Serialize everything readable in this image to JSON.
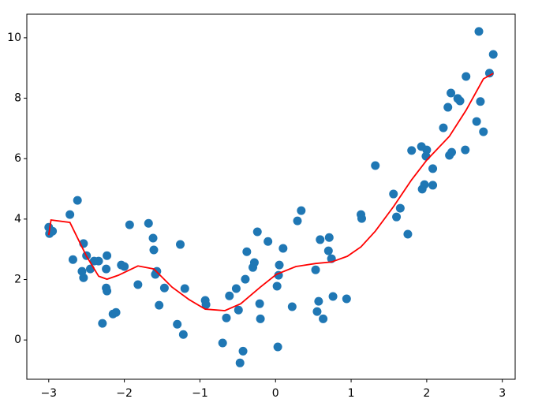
{
  "chart_data": {
    "type": "scatter",
    "xlim": [
      -3.29,
      3.17
    ],
    "ylim": [
      -1.3,
      10.78
    ],
    "xticks": [
      {
        "value": -3,
        "label": "−3"
      },
      {
        "value": -2,
        "label": "−2"
      },
      {
        "value": -1,
        "label": "−1"
      },
      0,
      1,
      2,
      3
    ],
    "yticks": [
      0,
      2,
      4,
      6,
      8,
      10
    ],
    "series": [
      {
        "type": "scatter",
        "color": "#1f77b4",
        "x": [
          -3.0,
          -2.99,
          -2.95,
          -2.72,
          -2.68,
          -2.62,
          -2.54,
          -2.56,
          -2.54,
          -2.5,
          -2.45,
          -2.4,
          -2.34,
          -2.29,
          -2.24,
          -2.23,
          -2.24,
          -2.23,
          -2.15,
          -2.11,
          -2.04,
          -2.0,
          -1.93,
          -1.82,
          -1.68,
          -1.62,
          -1.61,
          -1.59,
          -1.57,
          -1.54,
          -1.47,
          -1.3,
          -1.26,
          -1.22,
          -1.2,
          -0.93,
          -0.92,
          -0.7,
          -0.65,
          -0.61,
          -0.52,
          -0.49,
          -0.47,
          -0.43,
          -0.4,
          -0.38,
          -0.3,
          -0.28,
          -0.24,
          -0.21,
          -0.2,
          -0.1,
          0.02,
          0.03,
          0.04,
          0.05,
          0.1,
          0.22,
          0.29,
          0.34,
          0.53,
          0.55,
          0.57,
          0.59,
          0.63,
          0.7,
          0.71,
          0.74,
          0.76,
          0.94,
          1.13,
          1.14,
          1.32,
          1.56,
          1.6,
          1.65,
          1.75,
          1.8,
          1.93,
          1.94,
          1.97,
          1.99,
          2.0,
          2.08,
          2.08,
          2.22,
          2.28,
          2.3,
          2.32,
          2.33,
          2.41,
          2.44,
          2.51,
          2.52,
          2.66,
          2.69,
          2.71,
          2.75,
          2.83,
          2.88
        ],
        "y": [
          3.73,
          3.52,
          3.6,
          4.15,
          2.66,
          4.62,
          3.19,
          2.27,
          2.06,
          2.79,
          2.35,
          2.61,
          2.61,
          0.55,
          2.35,
          2.79,
          1.72,
          1.62,
          0.86,
          0.91,
          2.48,
          2.43,
          3.81,
          1.83,
          3.86,
          3.37,
          2.98,
          2.17,
          2.27,
          1.15,
          1.72,
          0.52,
          3.16,
          0.18,
          1.7,
          1.31,
          1.17,
          -0.1,
          0.73,
          1.46,
          1.7,
          0.99,
          -0.76,
          -0.37,
          2.01,
          2.92,
          2.4,
          2.56,
          3.58,
          1.2,
          0.7,
          3.26,
          1.78,
          -0.23,
          2.14,
          2.48,
          3.03,
          1.1,
          3.94,
          4.28,
          2.32,
          0.94,
          1.28,
          3.32,
          0.7,
          2.95,
          3.39,
          2.69,
          1.44,
          1.36,
          4.15,
          4.02,
          5.77,
          4.83,
          4.07,
          4.36,
          3.5,
          6.27,
          6.4,
          4.99,
          5.14,
          6.08,
          6.29,
          5.12,
          5.67,
          7.02,
          7.7,
          6.11,
          8.17,
          6.21,
          7.99,
          7.91,
          6.29,
          8.72,
          7.23,
          10.21,
          7.89,
          6.89,
          8.83,
          9.45
        ]
      },
      {
        "type": "line",
        "color": "#ff0000",
        "x": [
          -3.0,
          -2.97,
          -2.72,
          -2.5,
          -2.34,
          -2.23,
          -2.08,
          -1.82,
          -1.61,
          -1.37,
          -1.14,
          -0.93,
          -0.67,
          -0.46,
          -0.2,
          0.01,
          0.27,
          0.53,
          0.74,
          0.95,
          1.13,
          1.32,
          1.56,
          1.8,
          2.0,
          2.3,
          2.52,
          2.75,
          2.88
        ],
        "y": [
          3.47,
          3.97,
          3.89,
          2.77,
          2.11,
          2.01,
          2.14,
          2.45,
          2.35,
          1.75,
          1.33,
          1.02,
          0.97,
          1.2,
          1.75,
          2.17,
          2.43,
          2.53,
          2.58,
          2.77,
          3.08,
          3.6,
          4.41,
          5.3,
          5.95,
          6.74,
          7.6,
          8.64,
          8.82
        ]
      }
    ]
  }
}
